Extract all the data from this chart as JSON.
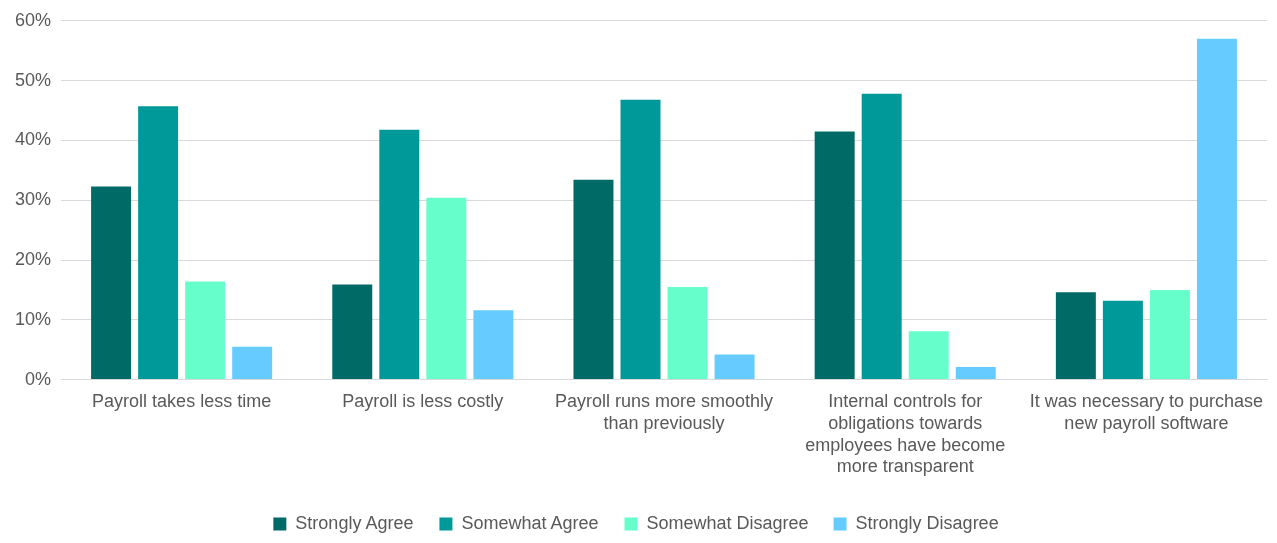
{
  "chart_data": {
    "type": "bar",
    "categories": [
      "Payroll takes less time",
      "Payroll is less costly",
      "Payroll runs more smoothly than previously",
      "Internal controls for obligations towards employees have become more transparent",
      "It was necessary to purchase new payroll software"
    ],
    "series": [
      {
        "name": "Strongly Agree",
        "color": "#006a67",
        "values": [
          32.3,
          15.9,
          33.4,
          41.5,
          14.6
        ]
      },
      {
        "name": "Somewhat Agree",
        "color": "#009999",
        "values": [
          45.7,
          41.8,
          46.8,
          47.8,
          13.2
        ]
      },
      {
        "name": "Somewhat Disagree",
        "color": "#66ffcc",
        "values": [
          16.4,
          30.4,
          15.5,
          8.1,
          15.0
        ]
      },
      {
        "name": "Strongly Disagree",
        "color": "#66ccff",
        "values": [
          5.5,
          11.6,
          4.2,
          2.1,
          57.0
        ]
      }
    ],
    "ylim": [
      0,
      60
    ],
    "yticks": [
      {
        "value": 0,
        "label": "0%"
      },
      {
        "value": 10,
        "label": "10%"
      },
      {
        "value": 20,
        "label": "20%"
      },
      {
        "value": 30,
        "label": "30%"
      },
      {
        "value": 40,
        "label": "40%"
      },
      {
        "value": 50,
        "label": "50%"
      },
      {
        "value": 60,
        "label": "60%"
      }
    ],
    "grid": "y",
    "legend": "bottom"
  }
}
